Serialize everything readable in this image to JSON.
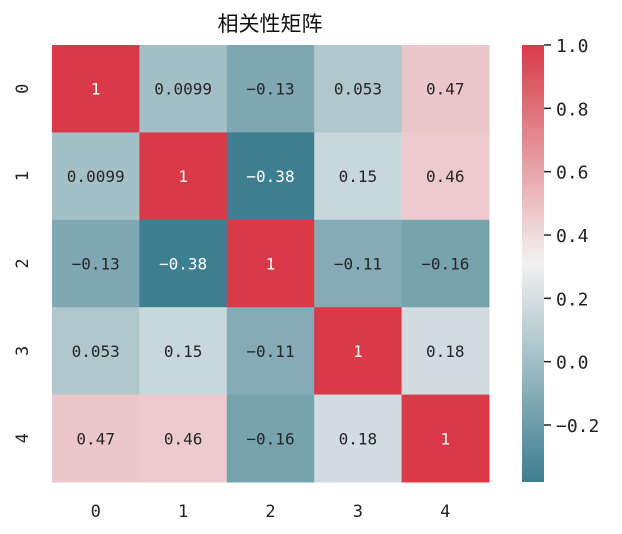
{
  "chart_data": {
    "type": "heatmap",
    "title": "相关性矩阵",
    "x_tick_labels": [
      "0",
      "1",
      "2",
      "3",
      "4"
    ],
    "y_tick_labels": [
      "0",
      "1",
      "2",
      "3",
      "4"
    ],
    "values": [
      [
        1,
        0.0099,
        -0.13,
        0.053,
        0.47
      ],
      [
        0.0099,
        1,
        -0.38,
        0.15,
        0.46
      ],
      [
        -0.13,
        -0.38,
        1,
        -0.11,
        -0.16
      ],
      [
        0.053,
        0.15,
        -0.11,
        1,
        0.18
      ],
      [
        0.47,
        0.46,
        -0.16,
        0.18,
        1
      ]
    ],
    "annotations": [
      [
        "1",
        "0.0099",
        "−0.13",
        "0.053",
        "0.47"
      ],
      [
        "0.0099",
        "1",
        "−0.38",
        "0.15",
        "0.46"
      ],
      [
        "−0.13",
        "−0.38",
        "1",
        "−0.11",
        "−0.16"
      ],
      [
        "0.053",
        "0.15",
        "−0.11",
        "1",
        "0.18"
      ],
      [
        "0.47",
        "0.46",
        "−0.16",
        "0.18",
        "1"
      ]
    ],
    "colorbar": {
      "range": [
        -0.38,
        1.0
      ],
      "ticks": [
        1.0,
        0.8,
        0.6,
        0.4,
        0.2,
        0.0,
        -0.2
      ],
      "tick_labels": [
        "1.0",
        "0.8",
        "0.6",
        "0.4",
        "0.2",
        "0.0",
        "−0.2"
      ]
    },
    "colors": {
      "low": "#3d7e90",
      "mid": "#f2f2f2",
      "high": "#da3a47"
    }
  }
}
